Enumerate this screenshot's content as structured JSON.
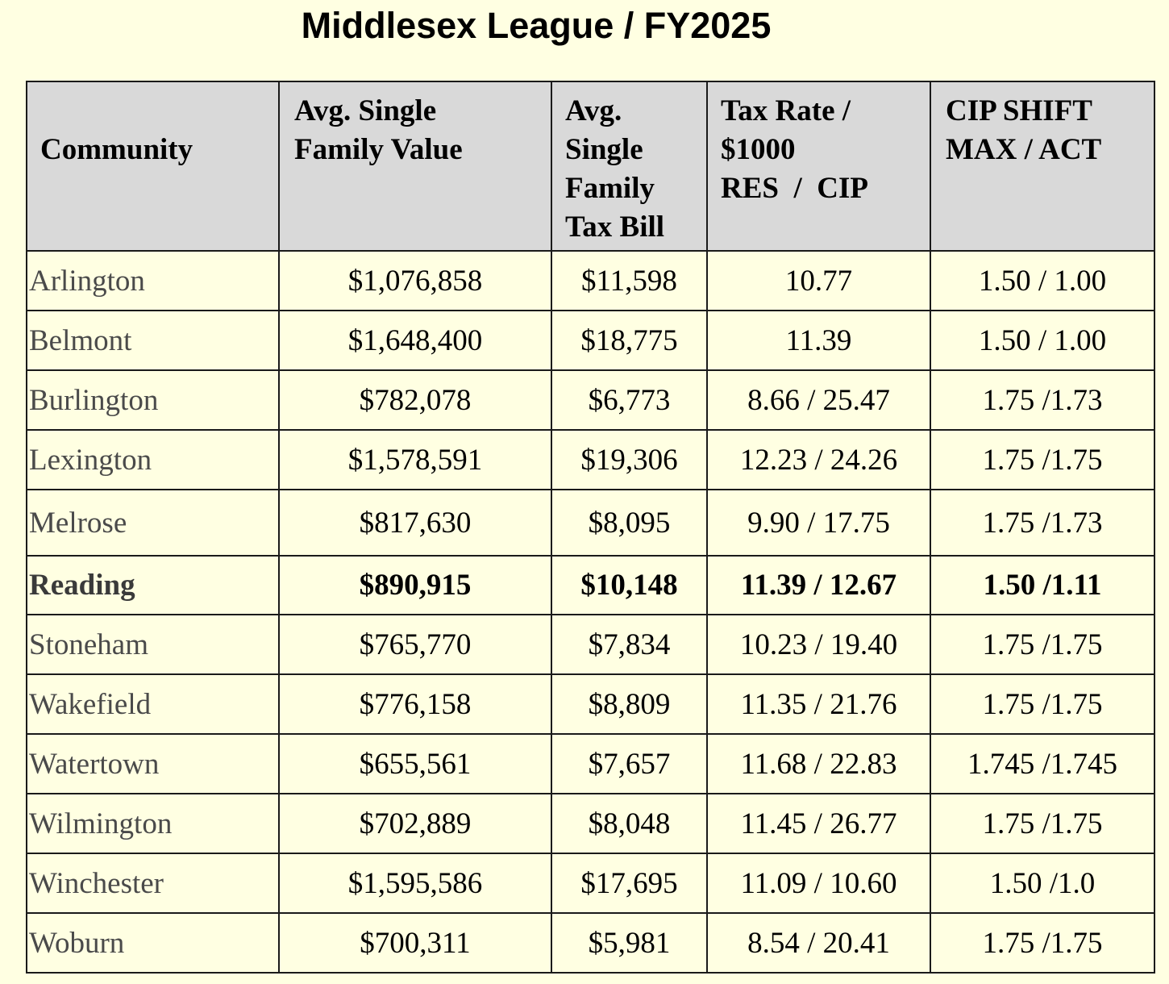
{
  "title": "Middlesex League / FY2025",
  "headers": {
    "community": "Community",
    "value": [
      "Avg. Single",
      "Family Value"
    ],
    "bill": [
      "Avg.",
      "Single",
      "Family",
      "Tax Bill"
    ],
    "rate": [
      "Tax Rate /",
      "$1000",
      "RES  /  CIP"
    ],
    "shift": [
      "CIP SHIFT",
      "MAX / ACT"
    ]
  },
  "rows": [
    {
      "community": "Arlington",
      "value": "$1,076,858",
      "bill": "$11,598",
      "rate": "10.77",
      "shift": "1.50 / 1.00"
    },
    {
      "community": "Belmont",
      "value": "$1,648,400",
      "bill": "$18,775",
      "rate": "11.39",
      "shift": "1.50 / 1.00"
    },
    {
      "community": "Burlington",
      "value": "$782,078",
      "bill": "$6,773",
      "rate": "8.66 / 25.47",
      "shift": "1.75 /1.73"
    },
    {
      "community": "Lexington",
      "value": "$1,578,591",
      "bill": "$19,306",
      "rate": "12.23 / 24.26",
      "shift": "1.75 /1.75"
    },
    {
      "community": "Melrose",
      "value": "$817,630",
      "bill": "$8,095",
      "rate": "9.90 / 17.75",
      "shift": "1.75 /1.73"
    },
    {
      "community": "Reading",
      "value": "$890,915",
      "bill": "$10,148",
      "rate": "11.39 / 12.67",
      "shift": "1.50 /1.11"
    },
    {
      "community": "Stoneham",
      "value": "$765,770",
      "bill": "$7,834",
      "rate": "10.23 / 19.40",
      "shift": "1.75 /1.75"
    },
    {
      "community": "Wakefield",
      "value": "$776,158",
      "bill": "$8,809",
      "rate": "11.35 / 21.76",
      "shift": "1.75 /1.75"
    },
    {
      "community": "Watertown",
      "value": "$655,561",
      "bill": "$7,657",
      "rate": "11.68 / 22.83",
      "shift": "1.745 /1.745"
    },
    {
      "community": "Wilmington",
      "value": "$702,889",
      "bill": "$8,048",
      "rate": "11.45 / 26.77",
      "shift": "1.75 /1.75"
    },
    {
      "community": "Winchester",
      "value": "$1,595,586",
      "bill": "$17,695",
      "rate": "11.09 / 10.60",
      "shift": "1.50 /1.0"
    },
    {
      "community": "Woburn",
      "value": "$700,311",
      "bill": "$5,981",
      "rate": "8.54 / 20.41",
      "shift": "1.75 /1.75"
    }
  ]
}
